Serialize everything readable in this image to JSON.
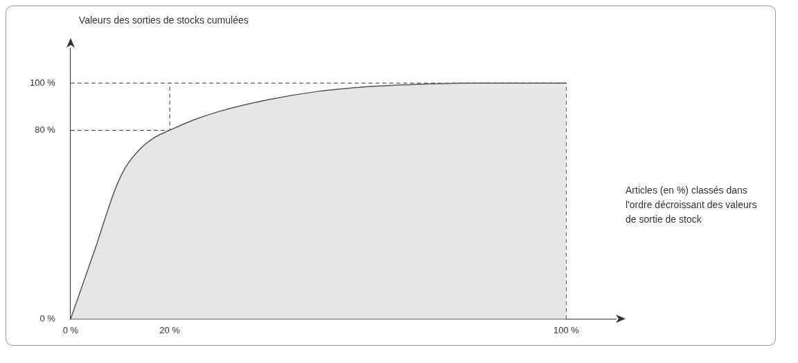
{
  "chart_data": {
    "type": "area",
    "ylabel": "Valeurs des sorties de stocks cumulées",
    "xlabel": "Articles (en %) classés dans l'ordre décroissant des valeurs de sortie de stock",
    "x": [
      0,
      5,
      9,
      11,
      14,
      17,
      20,
      25,
      30,
      40,
      50,
      60,
      70,
      80,
      100
    ],
    "series": [
      {
        "color": "#555555",
        "values": [
          0,
          30,
          55,
          64,
          72,
          77,
          80,
          84.5,
          88,
          93,
          96.5,
          98.5,
          99.5,
          100,
          100
        ]
      }
    ],
    "xlim": [
      0,
      110
    ],
    "ylim": [
      0,
      115
    ],
    "xticks": [
      {
        "value": 0,
        "label": "0 %"
      },
      {
        "value": 20,
        "label": "20 %"
      },
      {
        "value": 100,
        "label": "100 %"
      }
    ],
    "yticks": [
      {
        "value": 0,
        "label": "0 %"
      },
      {
        "value": 80,
        "label": "80 %"
      },
      {
        "value": 100,
        "label": "100 %"
      }
    ],
    "ref_lines": [
      {
        "axis": "y",
        "value": 80,
        "line_style": "dashed"
      },
      {
        "axis": "y",
        "value": 100,
        "line_style": "dashed"
      },
      {
        "axis": "x",
        "value": 20,
        "line_style": "dashed"
      },
      {
        "axis": "x",
        "value": 100,
        "line_style": "dashed"
      }
    ],
    "grid": false,
    "legend": false,
    "marker": "none"
  }
}
